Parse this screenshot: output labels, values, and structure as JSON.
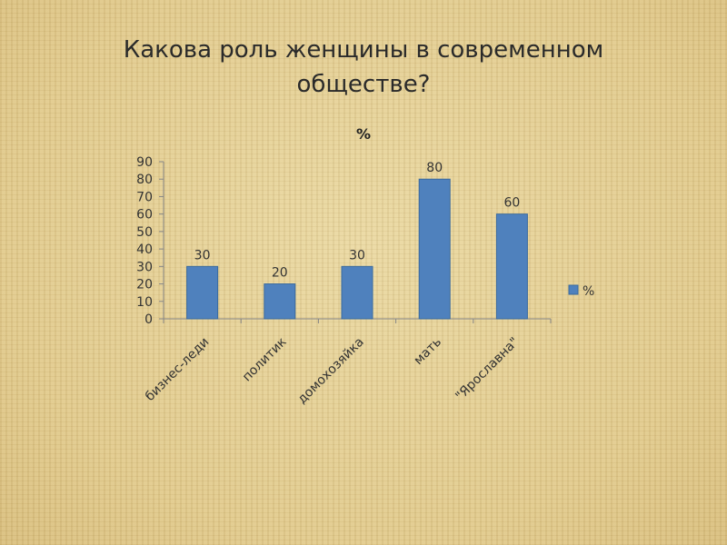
{
  "slide": {
    "title_line1": "Какова роль женщины в современном",
    "title_line2": "обществе?"
  },
  "chart_data": {
    "type": "bar",
    "title": "%",
    "categories": [
      "бизнес-леди",
      "политик",
      "домохозяйка",
      "мать",
      "\"Ярославна\""
    ],
    "series": [
      {
        "name": "%",
        "values": [
          30,
          20,
          30,
          80,
          60
        ],
        "color": "#4f81bd"
      }
    ],
    "ylim": [
      0,
      90
    ],
    "yticks": [
      0,
      10,
      20,
      30,
      40,
      50,
      60,
      70,
      80,
      90
    ],
    "xlabel": "",
    "ylabel": "",
    "legend": "right",
    "grid": false,
    "data_labels": true
  }
}
